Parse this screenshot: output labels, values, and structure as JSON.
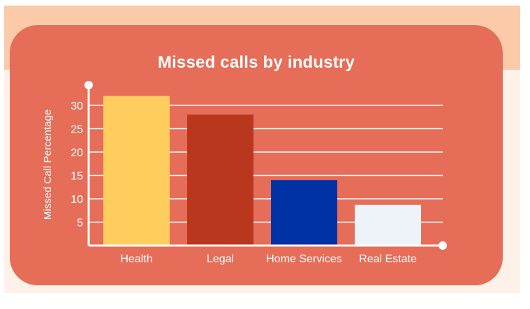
{
  "chart_data": {
    "type": "bar",
    "title": "Missed calls by industry",
    "xlabel": "",
    "ylabel": "Missed Call Percentage",
    "categories": [
      "Health",
      "Legal",
      "Home Services",
      "Real Estate"
    ],
    "values": [
      32,
      28,
      14,
      8.7
    ],
    "colors": [
      "#ffcd5e",
      "#b8371d",
      "#0031a5",
      "#eef3f9"
    ],
    "yticks": [
      5,
      10,
      15,
      20,
      25,
      30
    ],
    "ylim": [
      0,
      34
    ],
    "grid": true,
    "colors_theme": {
      "card": "#e66d58",
      "text": "#ffffff",
      "grid": "#ffffff"
    }
  }
}
